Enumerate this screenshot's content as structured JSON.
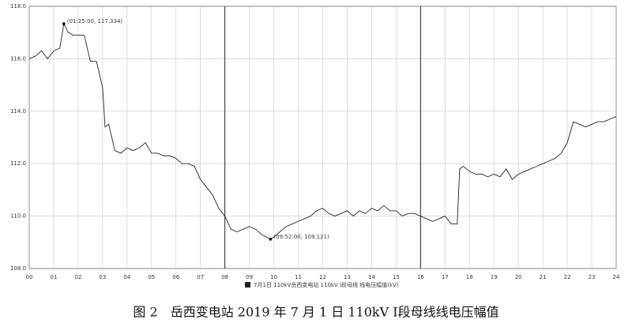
{
  "chart_data": {
    "type": "line",
    "caption": "图 2　岳西变电站 2019 年 7 月 1 日 110kV Ⅰ段母线线电压幅值",
    "x": [
      0,
      0.25,
      0.5,
      0.75,
      1.0,
      1.25,
      1.4167,
      1.6,
      1.8,
      2.0,
      2.25,
      2.5,
      2.75,
      3.0,
      3.1,
      3.25,
      3.5,
      3.75,
      4.0,
      4.25,
      4.5,
      4.75,
      5.0,
      5.25,
      5.5,
      5.75,
      6.0,
      6.25,
      6.5,
      6.75,
      7.0,
      7.25,
      7.5,
      7.75,
      8.0,
      8.25,
      8.5,
      8.75,
      9.0,
      9.25,
      9.5,
      9.8667,
      10.0,
      10.25,
      10.5,
      10.75,
      11.0,
      11.25,
      11.5,
      11.75,
      12.0,
      12.25,
      12.5,
      12.75,
      13.0,
      13.25,
      13.5,
      13.75,
      14.0,
      14.25,
      14.5,
      14.75,
      15.0,
      15.25,
      15.5,
      15.75,
      16.0,
      16.25,
      16.5,
      16.75,
      17.0,
      17.25,
      17.5,
      17.6,
      17.75,
      18.0,
      18.25,
      18.5,
      18.75,
      19.0,
      19.25,
      19.5,
      19.75,
      20.0,
      20.25,
      20.5,
      20.75,
      21.0,
      21.25,
      21.5,
      21.75,
      22.0,
      22.25,
      22.5,
      22.75,
      23.0,
      23.25,
      23.5,
      23.75,
      24.0
    ],
    "series": [
      {
        "name": "7月1日 110kV岳西变电站 110kV I段母线 线电压幅值(kV)",
        "color": "#222222",
        "values": [
          116.0,
          116.1,
          116.3,
          116.0,
          116.3,
          116.4,
          117.334,
          117.0,
          116.9,
          116.9,
          116.9,
          115.9,
          115.9,
          114.9,
          113.4,
          113.5,
          112.5,
          112.4,
          112.6,
          112.5,
          112.6,
          112.8,
          112.4,
          112.4,
          112.3,
          112.3,
          112.2,
          112.0,
          112.0,
          111.9,
          111.4,
          111.1,
          110.8,
          110.3,
          110.0,
          109.5,
          109.4,
          109.5,
          109.6,
          109.5,
          109.3,
          109.121,
          109.2,
          109.4,
          109.6,
          109.7,
          109.8,
          109.9,
          110.0,
          110.2,
          110.3,
          110.1,
          110.0,
          110.1,
          110.2,
          110.0,
          110.2,
          110.1,
          110.3,
          110.2,
          110.4,
          110.2,
          110.2,
          110.0,
          110.1,
          110.1,
          110.0,
          109.9,
          109.8,
          109.9,
          110.0,
          109.7,
          109.7,
          111.8,
          111.9,
          111.7,
          111.6,
          111.6,
          111.5,
          111.6,
          111.5,
          111.8,
          111.4,
          111.6,
          111.7,
          111.8,
          111.9,
          112.0,
          112.1,
          112.2,
          112.4,
          112.8,
          113.6,
          113.5,
          113.4,
          113.5,
          113.6,
          113.6,
          113.7,
          113.8
        ]
      }
    ],
    "annotations": [
      {
        "x": 1.4167,
        "y": 117.334,
        "text": "(01:25:00, 117.334)"
      },
      {
        "x": 9.8667,
        "y": 109.121,
        "text": "(09:52:00, 109.121)"
      }
    ],
    "markers": [
      8,
      16
    ],
    "xlim": [
      0,
      24
    ],
    "xticks": [
      {
        "value": 0,
        "label": "00"
      },
      {
        "value": 1,
        "label": "01"
      },
      {
        "value": 2,
        "label": "02"
      },
      {
        "value": 3,
        "label": "03"
      },
      {
        "value": 4,
        "label": "04"
      },
      {
        "value": 5,
        "label": "05"
      },
      {
        "value": 6,
        "label": "06"
      },
      {
        "value": 7,
        "label": "07"
      },
      {
        "value": 8,
        "label": "08"
      },
      {
        "value": 9,
        "label": "09"
      },
      10,
      11,
      12,
      13,
      14,
      15,
      16,
      17,
      18,
      19,
      20,
      21,
      22,
      23,
      24
    ],
    "ylim": [
      108,
      118
    ],
    "yticks": [
      {
        "value": 108,
        "label": "108.0"
      },
      {
        "value": 110,
        "label": "110.0"
      },
      {
        "value": 112,
        "label": "112.0"
      },
      {
        "value": 114,
        "label": "114.0"
      },
      {
        "value": 116,
        "label": "116.0"
      },
      {
        "value": 118,
        "label": "118.0"
      }
    ],
    "grid": true
  }
}
